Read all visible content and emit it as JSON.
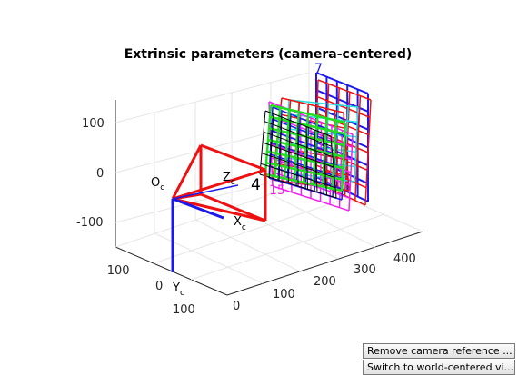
{
  "title": "Extrinsic parameters (camera-centered)",
  "y_axis_ticks": [
    "100",
    "0",
    "-100"
  ],
  "x_axis_ticks": [
    "-100",
    "0",
    "100"
  ],
  "z_axis_ticks": [
    "0",
    "100",
    "200",
    "300",
    "400"
  ],
  "camera_labels": {
    "oc": "O",
    "oc_sub": "c",
    "zc": "Z",
    "zc_sub": "c",
    "xc": "X",
    "xc_sub": "c",
    "yc": "Y",
    "yc_sub": "c"
  },
  "pattern_labels": {
    "seven": "7",
    "four": "4",
    "fifteen": "15"
  },
  "buttons": {
    "remove_camera": "Remove camera reference ...",
    "switch_world": "Switch to world-centered vi..."
  },
  "colors": {
    "camera": "#ee1111",
    "x_axis": "#1a1aee",
    "y_axis": "#1a1aee",
    "pattern_red": "#ee1111",
    "pattern_blue": "#1a1aee",
    "pattern_green": "#22dd22",
    "pattern_magenta": "#ee22ee",
    "pattern_cyan": "#22dddd",
    "pattern_black": "#000000"
  }
}
